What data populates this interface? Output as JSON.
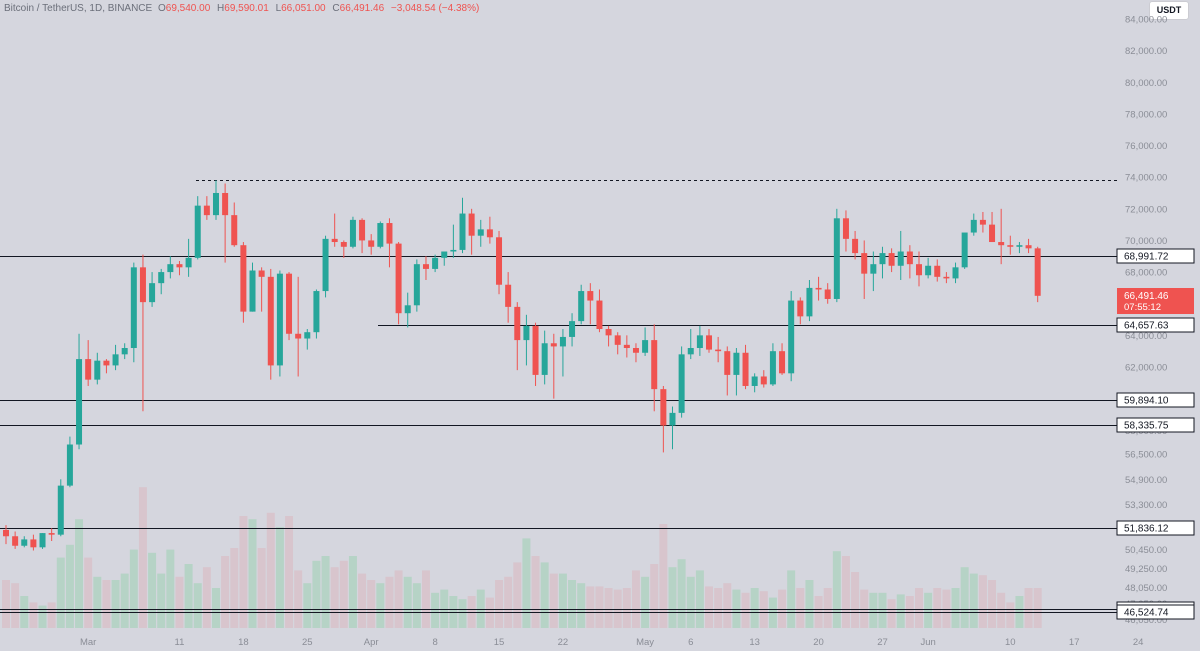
{
  "legend": {
    "title": "Bitcoin / TetherUS, 1D, BINANCE",
    "o_label": "O",
    "o_value": "69,540.00",
    "h_label": "H",
    "h_value": "69,590.01",
    "l_label": "L",
    "l_value": "66,051.00",
    "c_label": "C",
    "c_value": "66,491.46",
    "change": "−3,048.54 (−4.38%)"
  },
  "currency_button": "USDT",
  "colors": {
    "background": "#d5d6de",
    "up": "#26a69a",
    "down": "#ef5350",
    "up_volume": "#b6d3c6",
    "down_volume": "#d8c5cd",
    "level_line": "#131722",
    "axis_text": "#8a8d96"
  },
  "chart_data": {
    "type": "candlestick",
    "title": "Bitcoin / TetherUS, 1D, BINANCE",
    "y_axis_side": "right",
    "ylim": [
      45500,
      85200
    ],
    "y_ticks": [
      84000,
      82000,
      80000,
      78000,
      76000,
      74000,
      72000,
      70000,
      68000,
      66000,
      64000,
      62000,
      60000,
      58000,
      56500,
      54900,
      53300,
      51800,
      50450,
      49250,
      48050,
      47050,
      46050
    ],
    "y_tick_labels": [
      "84,000.00",
      "82,000.00",
      "80,000.00",
      "78,000.00",
      "76,000.00",
      "74,000.00",
      "72,000.00",
      "70,000.00",
      "68,000.00",
      "66,000.00",
      "64,000.00",
      "62,000.00",
      "60,000.00",
      "58,000.00",
      "56,500.00",
      "54,900.00",
      "53,300.00",
      "51,800.00",
      "50,450.00",
      "49,250.00",
      "48,050.00",
      "47,050.00",
      "46,050.00"
    ],
    "x_date_range": [
      "2024-02-21",
      "2024-06-10"
    ],
    "x_ticks": [
      {
        "label": "Mar",
        "date": "2024-03-01"
      },
      {
        "label": "11",
        "date": "2024-03-11"
      },
      {
        "label": "18",
        "date": "2024-03-18"
      },
      {
        "label": "25",
        "date": "2024-03-25"
      },
      {
        "label": "Apr",
        "date": "2024-04-01"
      },
      {
        "label": "8",
        "date": "2024-04-08"
      },
      {
        "label": "15",
        "date": "2024-04-15"
      },
      {
        "label": "22",
        "date": "2024-04-22"
      },
      {
        "label": "May",
        "date": "2024-05-01"
      },
      {
        "label": "6",
        "date": "2024-05-06"
      },
      {
        "label": "13",
        "date": "2024-05-13"
      },
      {
        "label": "20",
        "date": "2024-05-20"
      },
      {
        "label": "27",
        "date": "2024-05-27"
      },
      {
        "label": "Jun",
        "date": "2024-06-01"
      },
      {
        "label": "10",
        "date": "2024-06-10"
      },
      {
        "label": "17",
        "date": "2024-06-17"
      },
      {
        "label": "24",
        "date": "2024-06-24"
      }
    ],
    "candles": [
      [
        51700,
        52000,
        50800,
        51300
      ],
      [
        51300,
        51600,
        50500,
        50700
      ],
      [
        50700,
        51300,
        50600,
        51100
      ],
      [
        51100,
        51400,
        50400,
        50600
      ],
      [
        50600,
        51500,
        50500,
        51500
      ],
      [
        51500,
        51800,
        51000,
        51400
      ],
      [
        51400,
        54900,
        51300,
        54500
      ],
      [
        54500,
        57600,
        54400,
        57100
      ],
      [
        57100,
        64100,
        56800,
        62500
      ],
      [
        62500,
        63700,
        60800,
        61200
      ],
      [
        61200,
        62900,
        60900,
        62400
      ],
      [
        62400,
        62500,
        61600,
        62100
      ],
      [
        62100,
        63400,
        61800,
        62800
      ],
      [
        62800,
        63500,
        62500,
        63200
      ],
      [
        63200,
        68600,
        62300,
        68300
      ],
      [
        68300,
        69100,
        59200,
        66100
      ],
      [
        66100,
        68000,
        65800,
        67300
      ],
      [
        67300,
        68200,
        66600,
        68000
      ],
      [
        68000,
        69000,
        67600,
        68500
      ],
      [
        68500,
        68700,
        67800,
        68300
      ],
      [
        68300,
        70100,
        67700,
        68900
      ],
      [
        68900,
        72800,
        68800,
        72200
      ],
      [
        72200,
        72800,
        71300,
        71600
      ],
      [
        71600,
        73800,
        71300,
        73000
      ],
      [
        73000,
        73600,
        68600,
        71600
      ],
      [
        71600,
        72400,
        69600,
        69700
      ],
      [
        69700,
        69900,
        64800,
        65500
      ],
      [
        65500,
        68600,
        65500,
        68100
      ],
      [
        68100,
        68300,
        65500,
        67700
      ],
      [
        67700,
        68200,
        61200,
        62100
      ],
      [
        62100,
        68100,
        61400,
        67900
      ],
      [
        67900,
        68000,
        63700,
        64100
      ],
      [
        64100,
        67700,
        61400,
        63800
      ],
      [
        63800,
        64400,
        63100,
        64200
      ],
      [
        64200,
        66900,
        63800,
        66800
      ],
      [
        66800,
        70300,
        66400,
        70100
      ],
      [
        70100,
        71700,
        69600,
        69900
      ],
      [
        69900,
        70000,
        68900,
        69600
      ],
      [
        69600,
        71500,
        69500,
        71300
      ],
      [
        71300,
        71400,
        69200,
        70000
      ],
      [
        70000,
        70400,
        69100,
        69600
      ],
      [
        69600,
        71200,
        69500,
        71100
      ],
      [
        71100,
        71400,
        68300,
        69800
      ],
      [
        69800,
        69900,
        64700,
        65400
      ],
      [
        65400,
        66700,
        64500,
        65900
      ],
      [
        65900,
        68800,
        65500,
        68500
      ],
      [
        68500,
        69000,
        67500,
        68200
      ],
      [
        68200,
        69100,
        68000,
        68900
      ],
      [
        68900,
        69000,
        68400,
        69300
      ],
      [
        69300,
        71000,
        68900,
        69400
      ],
      [
        69400,
        72700,
        69200,
        71700
      ],
      [
        71700,
        72000,
        69100,
        70300
      ],
      [
        70300,
        71300,
        69600,
        70700
      ],
      [
        70700,
        71500,
        69800,
        70200
      ],
      [
        70200,
        70600,
        66600,
        67200
      ],
      [
        67200,
        68000,
        64800,
        65800
      ],
      [
        65800,
        66100,
        61800,
        63700
      ],
      [
        63700,
        65300,
        62100,
        64600
      ],
      [
        64600,
        64800,
        60800,
        61500
      ],
      [
        61500,
        64300,
        60900,
        63500
      ],
      [
        63500,
        64100,
        60000,
        63300
      ],
      [
        63300,
        64400,
        61400,
        63900
      ],
      [
        63900,
        65400,
        63300,
        64900
      ],
      [
        64900,
        67200,
        64700,
        66800
      ],
      [
        66800,
        67300,
        64700,
        66200
      ],
      [
        66200,
        66900,
        64200,
        64400
      ],
      [
        64400,
        64600,
        63300,
        64000
      ],
      [
        64000,
        64200,
        62800,
        63400
      ],
      [
        63400,
        64000,
        62600,
        63200
      ],
      [
        63200,
        63500,
        62300,
        62900
      ],
      [
        62900,
        64500,
        62700,
        63700
      ],
      [
        63700,
        64700,
        59200,
        60600
      ],
      [
        60600,
        60800,
        56600,
        58300
      ],
      [
        58300,
        59500,
        56800,
        59100
      ],
      [
        59100,
        63300,
        58800,
        62800
      ],
      [
        62800,
        64400,
        62500,
        63200
      ],
      [
        63200,
        64600,
        62700,
        64000
      ],
      [
        64000,
        64400,
        62900,
        63100
      ],
      [
        63100,
        63900,
        62300,
        63000
      ],
      [
        63000,
        63300,
        60200,
        61500
      ],
      [
        61500,
        63200,
        60200,
        62900
      ],
      [
        62900,
        63400,
        60600,
        60800
      ],
      [
        60800,
        61600,
        60400,
        61400
      ],
      [
        61400,
        61800,
        60700,
        60900
      ],
      [
        60900,
        63500,
        60800,
        63000
      ],
      [
        63000,
        63500,
        61500,
        61600
      ],
      [
        61600,
        66800,
        61100,
        66200
      ],
      [
        66200,
        66400,
        64700,
        65200
      ],
      [
        65200,
        67500,
        64900,
        67000
      ],
      [
        67000,
        67700,
        66200,
        66900
      ],
      [
        66900,
        67300,
        66000,
        66300
      ],
      [
        66300,
        72000,
        66100,
        71400
      ],
      [
        71400,
        71900,
        69300,
        70100
      ],
      [
        70100,
        70600,
        68800,
        69200
      ],
      [
        69200,
        70000,
        66300,
        67900
      ],
      [
        67900,
        69300,
        66800,
        68500
      ],
      [
        68500,
        69600,
        67600,
        69200
      ],
      [
        69200,
        69500,
        68000,
        68400
      ],
      [
        68400,
        70600,
        67500,
        69300
      ],
      [
        69300,
        69700,
        67600,
        68500
      ],
      [
        68500,
        69300,
        67100,
        67800
      ],
      [
        67800,
        68900,
        67600,
        68400
      ],
      [
        68400,
        68800,
        67400,
        67700
      ],
      [
        67700,
        68000,
        67300,
        67600
      ],
      [
        67600,
        68600,
        67300,
        68300
      ],
      [
        68300,
        70400,
        68200,
        70500
      ],
      [
        70500,
        71700,
        70300,
        71300
      ],
      [
        71300,
        71800,
        70500,
        71000
      ],
      [
        71000,
        71800,
        69900,
        69900
      ],
      [
        69900,
        72000,
        68500,
        69700
      ],
      [
        69700,
        70300,
        69100,
        69600
      ],
      [
        69600,
        69900,
        69200,
        69700
      ],
      [
        69700,
        70100,
        69200,
        69500
      ],
      [
        69500,
        69600,
        66100,
        66500
      ]
    ],
    "volume_note": "relative volume per candle, 0-100",
    "volume": [
      30,
      28,
      20,
      16,
      14,
      16,
      44,
      52,
      68,
      44,
      32,
      30,
      30,
      34,
      49,
      88,
      47,
      34,
      49,
      32,
      40,
      28,
      38,
      25,
      45,
      50,
      70,
      68,
      50,
      72,
      63,
      70,
      36,
      28,
      42,
      45,
      38,
      42,
      45,
      34,
      30,
      28,
      32,
      36,
      32,
      28,
      36,
      22,
      24,
      20,
      18,
      20,
      24,
      19,
      30,
      32,
      41,
      56,
      45,
      41,
      34,
      34,
      30,
      28,
      26,
      26,
      25,
      24,
      25,
      36,
      32,
      40,
      65,
      38,
      43,
      32,
      36,
      26,
      25,
      28,
      24,
      22,
      25,
      23,
      19,
      24,
      36,
      25,
      30,
      20,
      25,
      48,
      45,
      35,
      24,
      22,
      22,
      18,
      21,
      20,
      25,
      22,
      25,
      24,
      25,
      38,
      34,
      33,
      30,
      22,
      16,
      20,
      25,
      25
    ],
    "horizontal_levels": [
      {
        "value": 68991.72,
        "label": "68,991.72"
      },
      {
        "value": 64657.63,
        "label": "64,657.63"
      },
      {
        "value": 59894.1,
        "label": "59,894.10"
      },
      {
        "value": 58335.75,
        "label": "58,335.75"
      },
      {
        "value": 51836.12,
        "label": "51,836.12"
      },
      {
        "value": 46721.74,
        "label": "46,721.74"
      },
      {
        "value": 46524.74,
        "label": "46,524.74"
      }
    ],
    "ath_dashed_level": 73800,
    "last_price": {
      "value": 66491.46,
      "label": "66,491.46",
      "countdown": "07:55:12"
    }
  }
}
